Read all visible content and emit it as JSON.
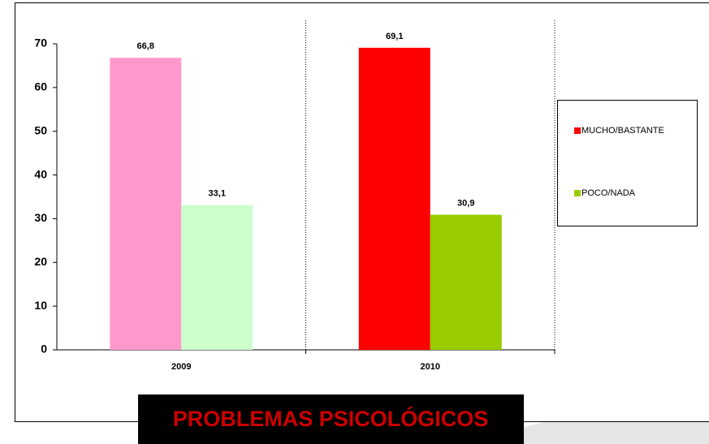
{
  "chart_data": {
    "type": "bar",
    "title": "PROBLEMAS PSICOLÓGICOS",
    "categories": [
      "2009",
      "2010"
    ],
    "series": [
      {
        "name": "MUCHO/BASTANTE",
        "color": "#ff0000",
        "colors": [
          "#ff99cc",
          "#ff0000"
        ],
        "values": [
          66.8,
          69.1
        ],
        "value_labels": [
          "66,8",
          "69,1"
        ]
      },
      {
        "name": "POCO/NADA",
        "color": "#99cc00",
        "colors": [
          "#ccffcc",
          "#99cc00"
        ],
        "values": [
          33.1,
          30.9
        ],
        "value_labels": [
          "33,1",
          "30,9"
        ]
      }
    ],
    "ylim": [
      0,
      70
    ],
    "yticks": [
      0,
      10,
      20,
      30,
      40,
      50,
      60,
      70
    ],
    "grid": false,
    "legend": "right"
  }
}
